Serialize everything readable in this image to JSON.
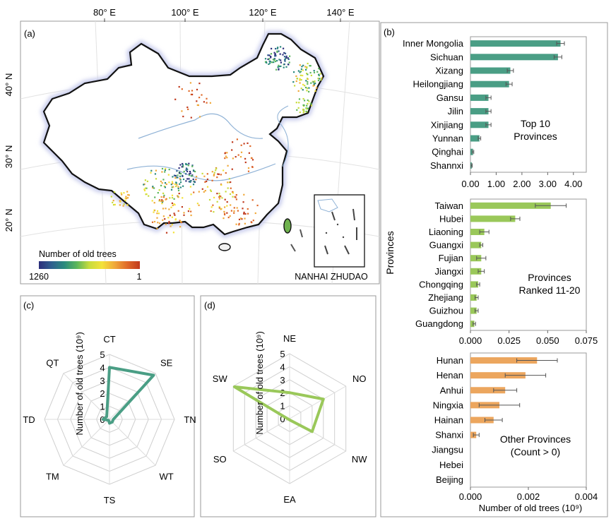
{
  "figure": {
    "panel_labels": [
      "(a)",
      "(b)",
      "(c)",
      "(d)"
    ]
  },
  "map": {
    "lon_ticks": [
      "80° E",
      "100° E",
      "120° E",
      "140° E"
    ],
    "lat_ticks": [
      "40° N",
      "30° N",
      "20° N"
    ],
    "legend_title": "Number of old trees",
    "legend_max": "1260",
    "legend_min": "1",
    "inset_label": "NANHAI ZHUDAO",
    "colors": {
      "border": "#111111",
      "halo": "#c8ccec",
      "river": "#8fb2d6",
      "scale": [
        "#2c2e7b",
        "#2f5f8f",
        "#2b8a7e",
        "#5bb65c",
        "#c8dc3c",
        "#f3e23a",
        "#f0a93a",
        "#e06a2a",
        "#c03a1e"
      ]
    }
  },
  "chart_data": [
    {
      "panel": "b-top",
      "type": "bar",
      "orientation": "horizontal",
      "color": "#4a9e85",
      "annotation": "Top 10\nProvinces",
      "categories": [
        "Inner Mongolia",
        "Sichuan",
        "Xizang",
        "Heilongjiang",
        "Gansu",
        "Jilin",
        "Xinjiang",
        "Yunnan",
        "Qinghai",
        "Shannxi"
      ],
      "values": [
        3.5,
        3.4,
        1.55,
        1.5,
        0.7,
        0.7,
        0.7,
        0.35,
        0.1,
        0.05
      ],
      "errors": [
        0.15,
        0.15,
        0.12,
        0.12,
        0.1,
        0.1,
        0.1,
        0.05,
        0.03,
        0.02
      ],
      "xlim": [
        0,
        4.5
      ],
      "xticks": [
        "0.00",
        "1.00",
        "2.00",
        "3.00",
        "4.00"
      ],
      "xtick_values": [
        0,
        1,
        2,
        3,
        4
      ]
    },
    {
      "panel": "b-mid",
      "type": "bar",
      "orientation": "horizontal",
      "color": "#9ac85a",
      "annotation": "Provinces\nRanked 11-20",
      "ylabel": "Provinces",
      "categories": [
        "Taiwan",
        "Hubei",
        "Liaoning",
        "Guangxi",
        "Fujian",
        "Jiangxi",
        "Chongqing",
        "Zhejiang",
        "Guizhou",
        "Guangdong"
      ],
      "values": [
        0.052,
        0.029,
        0.009,
        0.007,
        0.007,
        0.007,
        0.005,
        0.004,
        0.004,
        0.0025
      ],
      "errors": [
        0.01,
        0.003,
        0.003,
        0.001,
        0.003,
        0.002,
        0.001,
        0.001,
        0.001,
        0.0008
      ],
      "xlim": [
        0,
        0.075
      ],
      "xticks": [
        "0.000",
        "0.025",
        "0.050",
        "0.075"
      ],
      "xtick_values": [
        0,
        0.025,
        0.05,
        0.075
      ]
    },
    {
      "panel": "b-bottom",
      "type": "bar",
      "orientation": "horizontal",
      "color": "#eca65e",
      "annotation": "Other Provinces\n(Count > 0)",
      "xlabel": "Number of old trees (10⁹)",
      "categories": [
        "Hunan",
        "Henan",
        "Anhui",
        "Ningxia",
        "Hainan",
        "Shanxi",
        "Jiangsu",
        "Hebei",
        "Beijing"
      ],
      "values": [
        0.0023,
        0.0019,
        0.0012,
        0.001,
        0.0008,
        0.0002,
        0,
        0,
        0
      ],
      "errors": [
        0.0007,
        0.0007,
        0.0004,
        0.0007,
        0.0003,
        0.0001,
        0,
        0,
        0
      ],
      "xlim": [
        0,
        0.004
      ],
      "xticks": [
        "0.000",
        "0.002",
        "0.004"
      ],
      "xtick_values": [
        0,
        0.002,
        0.004
      ]
    },
    {
      "panel": "c",
      "type": "radar",
      "color": "#4a9e85",
      "ylabel": "Number of old trees (10⁹)",
      "categories": [
        "CT",
        "SE",
        "TN",
        "WT",
        "TS",
        "TM",
        "TD",
        "QT"
      ],
      "values": [
        4.0,
        4.8,
        0.3,
        0.3,
        0.3,
        0.1,
        0.5,
        0.3
      ],
      "rlim": [
        0,
        5
      ],
      "rticks": [
        "0",
        "1",
        "2",
        "3",
        "4",
        "5"
      ]
    },
    {
      "panel": "d",
      "type": "radar",
      "color": "#9ac85a",
      "ylabel": "Number of old trees (10⁹)",
      "categories": [
        "NE",
        "NO",
        "NW",
        "EA",
        "SO",
        "SW"
      ],
      "values": [
        2.0,
        3.0,
        2.0,
        0.1,
        0.1,
        4.9
      ],
      "rlim": [
        0,
        5
      ],
      "rticks": [
        "0",
        "1",
        "2",
        "3",
        "4",
        "5"
      ]
    }
  ]
}
